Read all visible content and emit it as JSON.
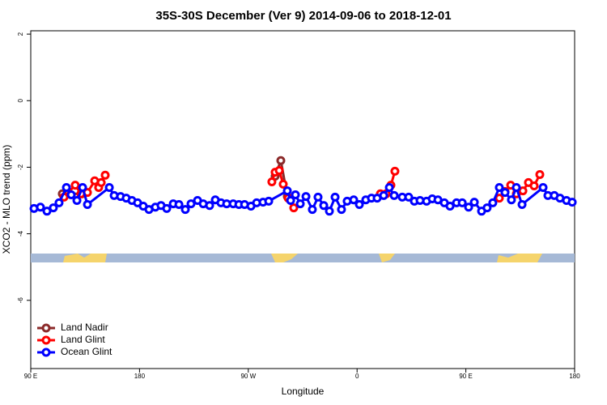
{
  "chart_data": {
    "type": "line",
    "title": "35S-30S December (Ver 9)   2014-09-06 to 2018-12-01",
    "x_label": "Longitude",
    "y_label": "XCO2 - MLO trend (ppm)",
    "xlim": [
      90,
      540
    ],
    "xticks": [
      {
        "value": 90,
        "label": "90 E"
      },
      {
        "value": 180,
        "label": "180"
      },
      {
        "value": 270,
        "label": "90 W"
      },
      {
        "value": 360,
        "label": "0"
      },
      {
        "value": 450,
        "label": "90 E"
      },
      {
        "value": 540,
        "label": "180"
      }
    ],
    "ylim": [
      -8.05,
      2.1
    ],
    "yticks": [
      -6,
      -4,
      -2,
      0,
      2
    ],
    "legend": "bottom-left",
    "series": [
      {
        "name": "Land Nadir",
        "color": "#8b2a2a",
        "x": [
          116.1,
          132.2,
          null,
          292.2,
          296.9,
          302.3
        ],
        "values": [
          -2.8,
          -2.8,
          null,
          -2.27,
          -1.8,
          -2.88
        ]
      },
      {
        "name": "Land Glint",
        "color": "#ff0000",
        "x": [
          117.5,
          126.8,
          131.5,
          136.9,
          142.9,
          146.2,
          148.3,
          151.6,
          null,
          289.5,
          292.2,
          295.6,
          298.9,
          303.0,
          307.6,
          null,
          379.3,
          384.0,
          388.0,
          391.3,
          null,
          477.7,
          482.4,
          487.1,
          491.8,
          497.2,
          501.8,
          506.5,
          511.2
        ],
        "values": [
          -2.9,
          -2.54,
          -2.8,
          -2.76,
          -2.41,
          -2.61,
          -2.46,
          -2.24,
          null,
          -2.44,
          -2.15,
          -2.1,
          -2.51,
          -2.93,
          -3.22,
          null,
          -2.8,
          -2.8,
          -2.54,
          -2.12,
          null,
          -2.93,
          -2.73,
          -2.54,
          -2.8,
          -2.71,
          -2.46,
          -2.56,
          -2.22
        ]
      },
      {
        "name": "Ocean Glint",
        "color": "#0000ff",
        "x": [
          92.7,
          98.0,
          103.4,
          108.7,
          113.4,
          119.5,
          123.5,
          128.2,
          132.9,
          136.9,
          155.0,
          159.0,
          164.3,
          169.0,
          173.7,
          178.4,
          183.1,
          187.8,
          193.1,
          197.8,
          202.5,
          207.9,
          212.6,
          217.9,
          222.6,
          228.0,
          232.7,
          238.0,
          242.7,
          247.4,
          252.1,
          257.5,
          262.2,
          266.9,
          272.2,
          276.9,
          282.2,
          286.9,
          302.3,
          305.0,
          309.0,
          313.0,
          317.7,
          323.0,
          327.7,
          332.4,
          337.1,
          341.8,
          347.1,
          351.8,
          357.2,
          361.9,
          367.2,
          371.9,
          376.6,
          382.0,
          386.7,
          390.7,
          397.4,
          402.7,
          407.4,
          412.1,
          417.5,
          422.2,
          426.9,
          432.2,
          436.9,
          442.3,
          447.0,
          452.3,
          457.0,
          463.0,
          467.6,
          472.3,
          477.7,
          482.4,
          487.7,
          491.8,
          496.5,
          513.9,
          517.9,
          523.2,
          527.9,
          533.3,
          538.0
        ],
        "values": [
          -3.24,
          -3.2,
          -3.32,
          -3.22,
          -3.07,
          -2.61,
          -2.83,
          -3.0,
          -2.61,
          -3.12,
          -2.61,
          -2.85,
          -2.88,
          -2.93,
          -3.0,
          -3.07,
          -3.17,
          -3.27,
          -3.2,
          -3.15,
          -3.24,
          -3.1,
          -3.12,
          -3.27,
          -3.1,
          -3.0,
          -3.1,
          -3.15,
          -2.98,
          -3.07,
          -3.1,
          -3.1,
          -3.12,
          -3.12,
          -3.17,
          -3.07,
          -3.05,
          -3.02,
          -2.71,
          -3.0,
          -2.83,
          -3.1,
          -2.88,
          -3.27,
          -2.9,
          -3.15,
          -3.32,
          -2.9,
          -3.27,
          -3.02,
          -2.98,
          -3.12,
          -2.98,
          -2.93,
          -2.93,
          -2.85,
          -2.61,
          -2.85,
          -2.9,
          -2.9,
          -3.02,
          -3.0,
          -3.02,
          -2.95,
          -2.98,
          -3.07,
          -3.17,
          -3.07,
          -3.07,
          -3.2,
          -3.05,
          -3.32,
          -3.22,
          -3.07,
          -2.61,
          -2.76,
          -2.98,
          -2.61,
          -3.12,
          -2.61,
          -2.85,
          -2.85,
          -2.93,
          -3.0,
          -3.05
        ]
      }
    ]
  }
}
